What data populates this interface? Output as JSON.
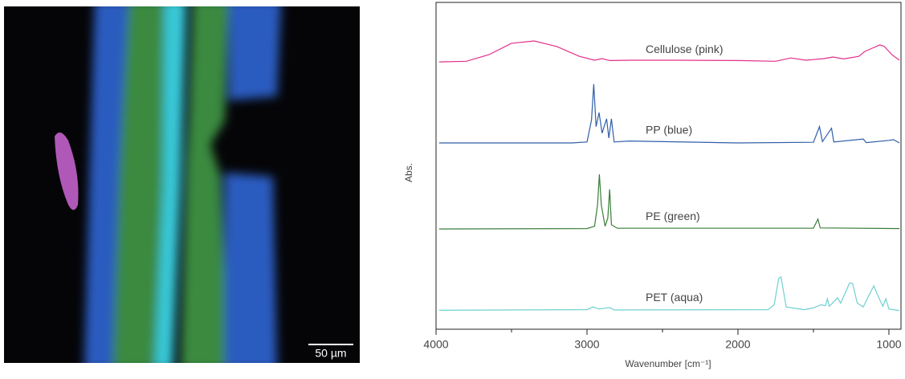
{
  "image": {
    "scale_bar": "50 µm"
  },
  "chart_data": {
    "type": "line",
    "xlabel": "Wavenumber [cm⁻¹]",
    "ylabel": "Abs.",
    "xlim": [
      4000,
      920
    ],
    "ylim": [
      0,
      100
    ],
    "xticks": [
      4000,
      3000,
      2000,
      1000
    ],
    "xminor_ticks": [
      3500,
      2500,
      1500
    ],
    "series": [
      {
        "name": "Cellulose (pink)",
        "color": "#e0308a",
        "x": [
          3980,
          3800,
          3650,
          3500,
          3350,
          3200,
          3050,
          2950,
          2900,
          2850,
          2700,
          2400,
          2000,
          1750,
          1650,
          1550,
          1430,
          1370,
          1300,
          1200,
          1160,
          1110,
          1060,
          1030,
          980,
          930
        ],
        "values": [
          81.8,
          82,
          84,
          87.5,
          88.2,
          86.5,
          83.5,
          82.3,
          82.8,
          82.2,
          82.3,
          82.3,
          82.2,
          82,
          83,
          82.3,
          82.8,
          83.3,
          82.7,
          83.5,
          85,
          86,
          87,
          86.5,
          84,
          82.3
        ]
      },
      {
        "name": "PP (blue)",
        "color": "#2f5fa8",
        "x": [
          3980,
          3100,
          3000,
          2970,
          2955,
          2940,
          2920,
          2900,
          2870,
          2855,
          2838,
          2820,
          2720,
          2000,
          1500,
          1460,
          1440,
          1380,
          1365,
          1170,
          1150,
          1000,
          970,
          930
        ],
        "values": [
          57,
          57,
          57.3,
          64,
          75,
          62,
          66.3,
          60,
          64.4,
          58.5,
          64.4,
          57.3,
          57.6,
          57,
          57.2,
          62,
          57.4,
          61.5,
          57.3,
          58.2,
          57.1,
          57.8,
          58,
          57
        ]
      },
      {
        "name": "PE (green)",
        "color": "#3a7d3a",
        "x": [
          3980,
          3000,
          2950,
          2930,
          2918,
          2905,
          2880,
          2862,
          2850,
          2838,
          2800,
          1500,
          1470,
          1455,
          930
        ],
        "values": [
          30.7,
          30.8,
          31.5,
          38,
          47.4,
          38,
          31.5,
          34,
          42.8,
          32,
          30.9,
          30.9,
          33.7,
          31,
          30.8
        ]
      },
      {
        "name": "PET (aqua)",
        "color": "#6fd0d0",
        "x": [
          3980,
          3000,
          2960,
          2920,
          2850,
          2820,
          1800,
          1760,
          1730,
          1715,
          1700,
          1680,
          1560,
          1500,
          1450,
          1420,
          1408,
          1395,
          1340,
          1320,
          1290,
          1260,
          1240,
          1210,
          1170,
          1120,
          1100,
          1080,
          1040,
          1020,
          1000,
          970,
          930
        ],
        "values": [
          5.8,
          6,
          6.8,
          6.2,
          6.6,
          5.9,
          6,
          7.5,
          15.5,
          16,
          12,
          6.8,
          6,
          6.5,
          7.5,
          7.2,
          9.3,
          7,
          9.6,
          8,
          11,
          14.2,
          14,
          8,
          6.8,
          11.5,
          13.3,
          11,
          7,
          9.3,
          6.2,
          6,
          5.7
        ]
      }
    ]
  }
}
